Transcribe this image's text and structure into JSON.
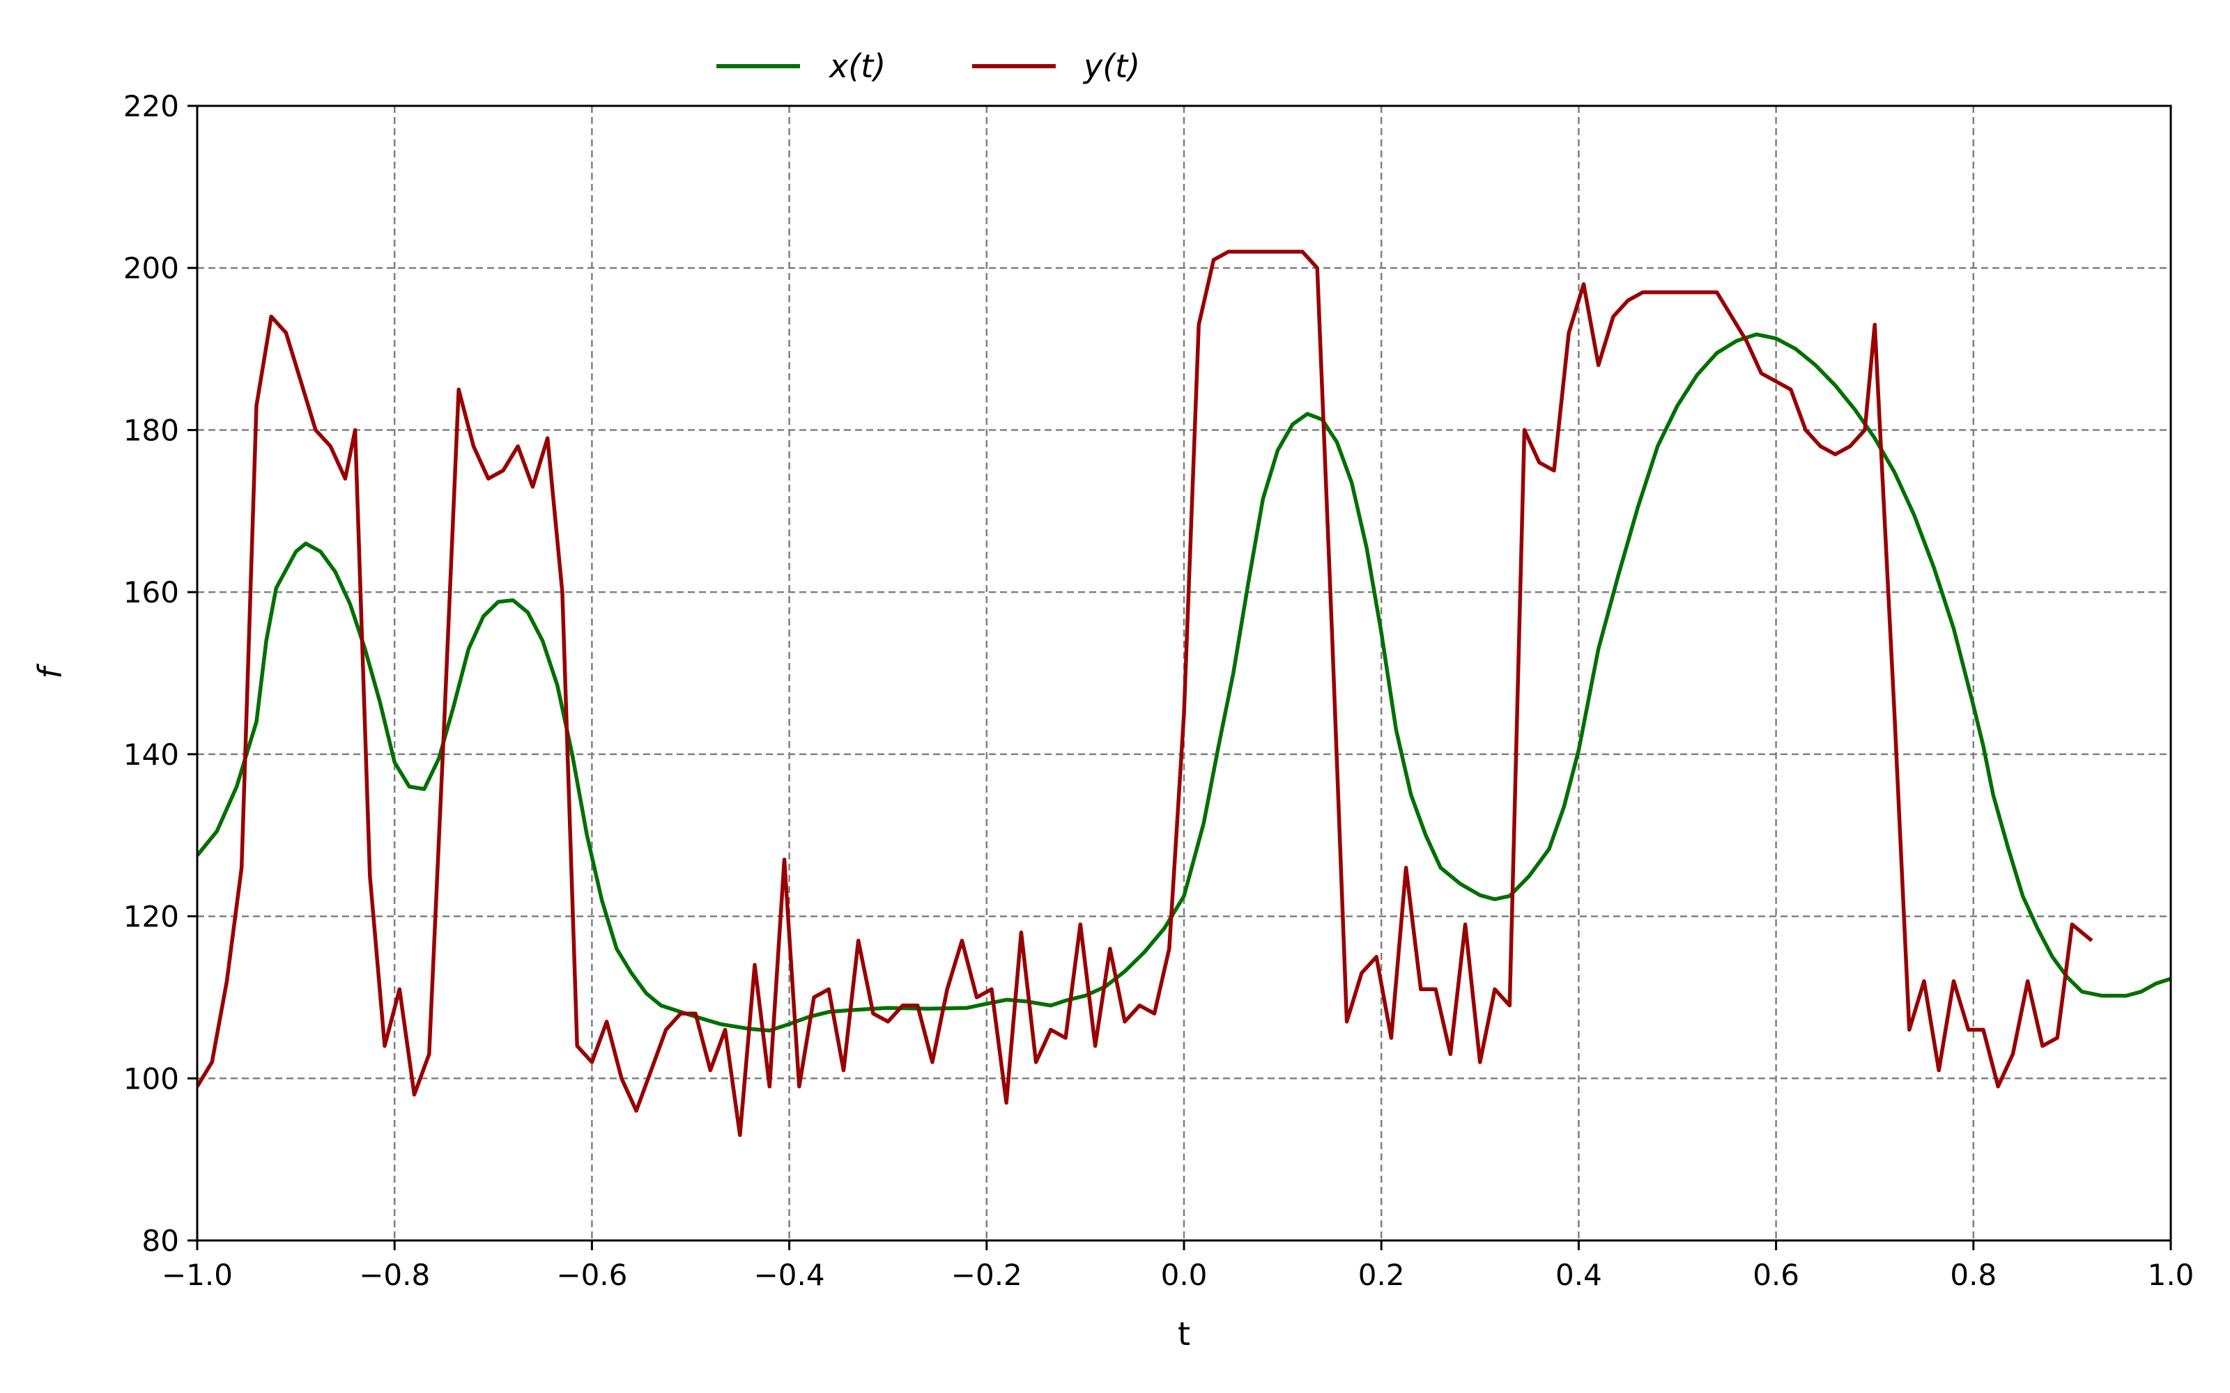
{
  "chart_data": {
    "type": "line",
    "title": "",
    "xlabel": "t",
    "ylabel": "f",
    "xlim": [
      -1.0,
      1.0
    ],
    "ylim": [
      80,
      220
    ],
    "xticks": [
      -1.0,
      -0.8,
      -0.6,
      -0.4,
      -0.2,
      0.0,
      0.2,
      0.4,
      0.6,
      0.8,
      1.0
    ],
    "xtick_labels": [
      "−1.0",
      "−0.8",
      "−0.6",
      "−0.4",
      "−0.2",
      "0.0",
      "0.2",
      "0.4",
      "0.6",
      "0.8",
      "1.0"
    ],
    "yticks": [
      80,
      100,
      120,
      140,
      160,
      180,
      200,
      220
    ],
    "ytick_labels": [
      "80",
      "100",
      "120",
      "140",
      "160",
      "180",
      "200",
      "220"
    ],
    "grid": true,
    "legend_position": "top-center, above plot",
    "series": [
      {
        "name": "x(t)",
        "color": "#007000",
        "points": [
          [
            -1.0,
            127.5
          ],
          [
            -0.98,
            130.5
          ],
          [
            -0.96,
            136
          ],
          [
            -0.94,
            144
          ],
          [
            -0.93,
            154
          ],
          [
            -0.92,
            160.5
          ],
          [
            -0.9,
            165
          ],
          [
            -0.89,
            166
          ],
          [
            -0.875,
            165
          ],
          [
            -0.86,
            162.5
          ],
          [
            -0.845,
            158.5
          ],
          [
            -0.83,
            153
          ],
          [
            -0.815,
            146.5
          ],
          [
            -0.8,
            139
          ],
          [
            -0.785,
            136
          ],
          [
            -0.77,
            135.7
          ],
          [
            -0.755,
            139.5
          ],
          [
            -0.74,
            146
          ],
          [
            -0.725,
            153
          ],
          [
            -0.71,
            157
          ],
          [
            -0.695,
            158.8
          ],
          [
            -0.68,
            159
          ],
          [
            -0.665,
            157.5
          ],
          [
            -0.65,
            154
          ],
          [
            -0.635,
            148.5
          ],
          [
            -0.62,
            140
          ],
          [
            -0.605,
            130
          ],
          [
            -0.59,
            122
          ],
          [
            -0.575,
            116
          ],
          [
            -0.56,
            113
          ],
          [
            -0.545,
            110.5
          ],
          [
            -0.53,
            109
          ],
          [
            -0.5,
            107.8
          ],
          [
            -0.47,
            106.7
          ],
          [
            -0.44,
            106.1
          ],
          [
            -0.42,
            105.9
          ],
          [
            -0.4,
            106.7
          ],
          [
            -0.38,
            107.6
          ],
          [
            -0.36,
            108.2
          ],
          [
            -0.34,
            108.4
          ],
          [
            -0.3,
            108.7
          ],
          [
            -0.26,
            108.6
          ],
          [
            -0.22,
            108.7
          ],
          [
            -0.2,
            109.2
          ],
          [
            -0.18,
            109.7
          ],
          [
            -0.16,
            109.5
          ],
          [
            -0.135,
            109.0
          ],
          [
            -0.12,
            109.6
          ],
          [
            -0.1,
            110.2
          ],
          [
            -0.08,
            111.3
          ],
          [
            -0.06,
            113.2
          ],
          [
            -0.04,
            115.6
          ],
          [
            -0.02,
            118.5
          ],
          [
            0.0,
            122.5
          ],
          [
            0.02,
            131.5
          ],
          [
            0.035,
            141
          ],
          [
            0.05,
            150
          ],
          [
            0.065,
            161
          ],
          [
            0.08,
            171.5
          ],
          [
            0.095,
            177.5
          ],
          [
            0.11,
            180.7
          ],
          [
            0.125,
            182
          ],
          [
            0.14,
            181.3
          ],
          [
            0.155,
            178.5
          ],
          [
            0.17,
            173.5
          ],
          [
            0.185,
            165.5
          ],
          [
            0.2,
            155
          ],
          [
            0.215,
            143
          ],
          [
            0.23,
            135
          ],
          [
            0.245,
            130
          ],
          [
            0.26,
            126
          ],
          [
            0.28,
            124
          ],
          [
            0.3,
            122.6
          ],
          [
            0.315,
            122.1
          ],
          [
            0.33,
            122.5
          ],
          [
            0.35,
            125
          ],
          [
            0.37,
            128.3
          ],
          [
            0.385,
            133.5
          ],
          [
            0.4,
            140.5
          ],
          [
            0.42,
            153
          ],
          [
            0.44,
            162
          ],
          [
            0.46,
            170.5
          ],
          [
            0.48,
            178
          ],
          [
            0.5,
            183
          ],
          [
            0.52,
            186.8
          ],
          [
            0.54,
            189.5
          ],
          [
            0.56,
            191
          ],
          [
            0.58,
            191.8
          ],
          [
            0.6,
            191.3
          ],
          [
            0.62,
            190
          ],
          [
            0.64,
            188
          ],
          [
            0.66,
            185.5
          ],
          [
            0.68,
            182.5
          ],
          [
            0.7,
            179
          ],
          [
            0.72,
            174.8
          ],
          [
            0.74,
            169.5
          ],
          [
            0.76,
            163
          ],
          [
            0.78,
            155.5
          ],
          [
            0.8,
            146
          ],
          [
            0.81,
            141
          ],
          [
            0.82,
            135
          ],
          [
            0.835,
            128.5
          ],
          [
            0.85,
            122.5
          ],
          [
            0.865,
            118.5
          ],
          [
            0.88,
            115
          ],
          [
            0.895,
            112.5
          ],
          [
            0.91,
            110.7
          ],
          [
            0.93,
            110.2
          ],
          [
            0.955,
            110.2
          ],
          [
            0.97,
            110.7
          ],
          [
            0.985,
            111.7
          ],
          [
            1.0,
            112.3
          ]
        ]
      },
      {
        "name": "y(t)",
        "color": "#990000",
        "points": [
          [
            -1.0,
            99
          ],
          [
            -0.985,
            102
          ],
          [
            -0.97,
            112
          ],
          [
            -0.955,
            126
          ],
          [
            -0.94,
            183
          ],
          [
            -0.925,
            194
          ],
          [
            -0.91,
            192
          ],
          [
            -0.895,
            186
          ],
          [
            -0.88,
            180
          ],
          [
            -0.865,
            178
          ],
          [
            -0.85,
            174
          ],
          [
            -0.84,
            180
          ],
          [
            -0.825,
            125
          ],
          [
            -0.81,
            104
          ],
          [
            -0.795,
            111
          ],
          [
            -0.78,
            98
          ],
          [
            -0.765,
            103
          ],
          [
            -0.75,
            143
          ],
          [
            -0.735,
            185
          ],
          [
            -0.72,
            178
          ],
          [
            -0.705,
            174
          ],
          [
            -0.69,
            175
          ],
          [
            -0.675,
            178
          ],
          [
            -0.66,
            173
          ],
          [
            -0.645,
            179
          ],
          [
            -0.63,
            160
          ],
          [
            -0.615,
            104
          ],
          [
            -0.6,
            102
          ],
          [
            -0.585,
            107
          ],
          [
            -0.57,
            100
          ],
          [
            -0.555,
            96
          ],
          [
            -0.54,
            101
          ],
          [
            -0.525,
            106
          ],
          [
            -0.51,
            108
          ],
          [
            -0.495,
            108
          ],
          [
            -0.48,
            101
          ],
          [
            -0.465,
            106
          ],
          [
            -0.45,
            93
          ],
          [
            -0.435,
            114
          ],
          [
            -0.42,
            99
          ],
          [
            -0.405,
            127
          ],
          [
            -0.39,
            99
          ],
          [
            -0.375,
            110
          ],
          [
            -0.36,
            111
          ],
          [
            -0.345,
            101
          ],
          [
            -0.33,
            117
          ],
          [
            -0.315,
            108
          ],
          [
            -0.3,
            107
          ],
          [
            -0.285,
            109
          ],
          [
            -0.27,
            109
          ],
          [
            -0.255,
            102
          ],
          [
            -0.24,
            111
          ],
          [
            -0.225,
            117
          ],
          [
            -0.21,
            110
          ],
          [
            -0.195,
            111
          ],
          [
            -0.18,
            97
          ],
          [
            -0.165,
            118
          ],
          [
            -0.15,
            102
          ],
          [
            -0.135,
            106
          ],
          [
            -0.12,
            105
          ],
          [
            -0.105,
            119
          ],
          [
            -0.09,
            104
          ],
          [
            -0.075,
            116
          ],
          [
            -0.06,
            107
          ],
          [
            -0.045,
            109
          ],
          [
            -0.03,
            108
          ],
          [
            -0.015,
            116
          ],
          [
            0.0,
            145
          ],
          [
            0.015,
            193
          ],
          [
            0.03,
            201
          ],
          [
            0.045,
            202
          ],
          [
            0.06,
            202
          ],
          [
            0.075,
            202
          ],
          [
            0.09,
            202
          ],
          [
            0.105,
            202
          ],
          [
            0.12,
            202
          ],
          [
            0.135,
            200
          ],
          [
            0.15,
            155
          ],
          [
            0.165,
            107
          ],
          [
            0.18,
            113
          ],
          [
            0.195,
            115
          ],
          [
            0.21,
            105
          ],
          [
            0.225,
            126
          ],
          [
            0.24,
            111
          ],
          [
            0.255,
            111
          ],
          [
            0.27,
            103
          ],
          [
            0.285,
            119
          ],
          [
            0.3,
            102
          ],
          [
            0.315,
            111
          ],
          [
            0.33,
            109
          ],
          [
            0.345,
            180
          ],
          [
            0.36,
            176
          ],
          [
            0.375,
            175
          ],
          [
            0.39,
            192
          ],
          [
            0.405,
            198
          ],
          [
            0.42,
            188
          ],
          [
            0.435,
            194
          ],
          [
            0.45,
            196
          ],
          [
            0.465,
            197
          ],
          [
            0.48,
            197
          ],
          [
            0.5,
            197
          ],
          [
            0.52,
            197
          ],
          [
            0.54,
            197
          ],
          [
            0.555,
            194
          ],
          [
            0.57,
            191
          ],
          [
            0.585,
            187
          ],
          [
            0.6,
            186
          ],
          [
            0.615,
            185
          ],
          [
            0.63,
            180
          ],
          [
            0.645,
            178
          ],
          [
            0.66,
            177
          ],
          [
            0.675,
            178
          ],
          [
            0.69,
            180
          ],
          [
            0.7,
            193
          ],
          [
            0.72,
            145
          ],
          [
            0.735,
            106
          ],
          [
            0.75,
            112
          ],
          [
            0.765,
            101
          ],
          [
            0.78,
            112
          ],
          [
            0.795,
            106
          ],
          [
            0.81,
            106
          ],
          [
            0.825,
            99
          ],
          [
            0.84,
            103
          ],
          [
            0.855,
            112
          ],
          [
            0.87,
            104
          ],
          [
            0.885,
            105
          ],
          [
            0.9,
            119
          ],
          [
            0.92,
            117
          ]
        ]
      }
    ]
  }
}
